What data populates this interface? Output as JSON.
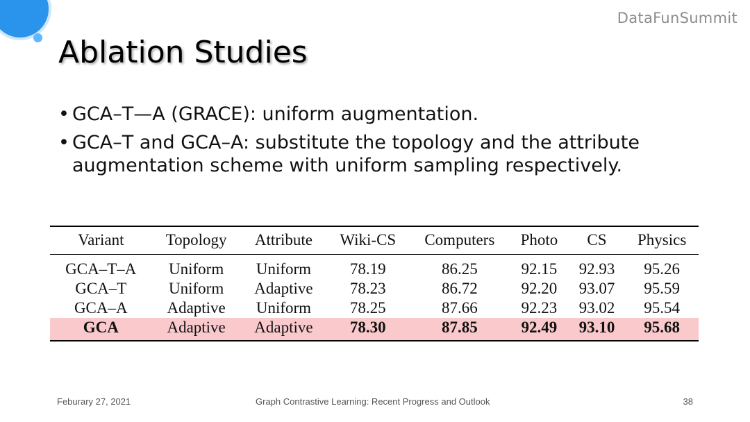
{
  "brand": "DataFunSummit",
  "title": "Ablation Studies",
  "bullets": [
    "GCA–T—A (GRACE): uniform augmentation.",
    "GCA–T and GCA–A: substitute the topology and the attribute augmentation scheme with uniform sampling respectively."
  ],
  "table": {
    "headers": [
      "Variant",
      "Topology",
      "Attribute",
      "Wiki-CS",
      "Computers",
      "Photo",
      "CS",
      "Physics"
    ],
    "rows": [
      [
        "GCA–T–A",
        "Uniform",
        "Uniform",
        "78.19",
        "86.25",
        "92.15",
        "92.93",
        "95.26"
      ],
      [
        "GCA–T",
        "Uniform",
        "Adaptive",
        "78.23",
        "86.72",
        "92.20",
        "93.07",
        "95.59"
      ],
      [
        "GCA–A",
        "Adaptive",
        "Uniform",
        "78.25",
        "87.66",
        "92.23",
        "93.02",
        "95.54"
      ],
      [
        "GCA",
        "Adaptive",
        "Adaptive",
        "78.30",
        "87.85",
        "92.49",
        "93.10",
        "95.68"
      ]
    ],
    "highlight_color": "#f9c9cc"
  },
  "footer": {
    "date": "Feburary 27, 2021",
    "caption": "Graph Contrastive Learning: Recent Progress and Outlook",
    "page": "38"
  },
  "colors": {
    "accent_blue": "#2a93ec",
    "brand_gray": "#8c8c8c"
  }
}
